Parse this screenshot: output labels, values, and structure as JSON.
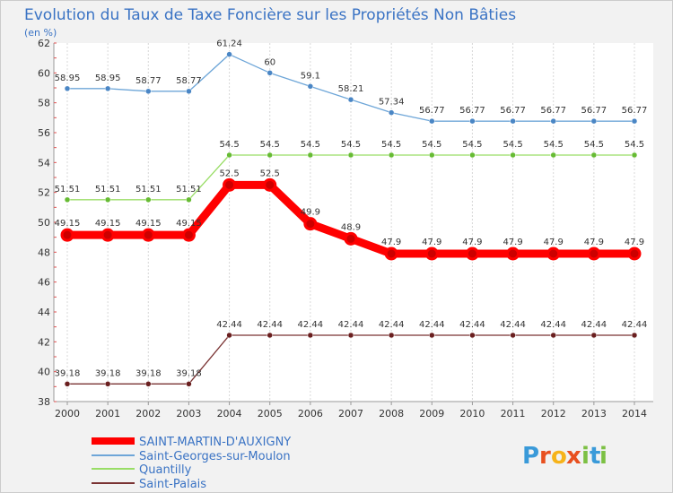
{
  "chart_data": {
    "type": "line",
    "title": "Evolution du Taux de Taxe Foncière sur les Propriétés Non Bâties",
    "ylabel": "(en %)",
    "xlabel": "",
    "x": [
      "2000",
      "2001",
      "2002",
      "2003",
      "2004",
      "2005",
      "2006",
      "2007",
      "2008",
      "2009",
      "2010",
      "2011",
      "2012",
      "2013",
      "2014"
    ],
    "ylim": [
      38,
      62
    ],
    "yticks": [
      38,
      40,
      42,
      44,
      46,
      48,
      50,
      52,
      54,
      56,
      58,
      60,
      62
    ],
    "grid": "vertical",
    "legend": "bottom-left",
    "series": [
      {
        "name": "SAINT-MARTIN-D'AUXIGNY",
        "color": "#ff0000",
        "marker": "#cc0000",
        "emphasis": true,
        "values": [
          49.15,
          49.15,
          49.15,
          49.15,
          52.5,
          52.5,
          49.9,
          48.9,
          47.9,
          47.9,
          47.9,
          47.9,
          47.9,
          47.9,
          47.9
        ],
        "labels": [
          "49.15",
          "49.15",
          "49.15",
          "49.15",
          "52.5",
          "52.5",
          "49.9",
          "48.9",
          "47.9",
          "47.9",
          "47.9",
          "47.9",
          "47.9",
          "47.9",
          "47.9"
        ]
      },
      {
        "name": "Saint-Georges-sur-Moulon",
        "color": "#6ea6d8",
        "marker": "#4a86c5",
        "emphasis": false,
        "values": [
          58.95,
          58.95,
          58.77,
          58.77,
          61.24,
          60,
          59.1,
          58.21,
          57.34,
          56.77,
          56.77,
          56.77,
          56.77,
          56.77,
          56.77
        ],
        "labels": [
          "58.95",
          "58.95",
          "58.77",
          "58.77",
          "61.24",
          "60",
          "59.1",
          "58.21",
          "57.34",
          "56.77",
          "56.77",
          "56.77",
          "56.77",
          "56.77",
          "56.77"
        ]
      },
      {
        "name": "Quantilly",
        "color": "#99dd66",
        "marker": "#66bb33",
        "emphasis": false,
        "values": [
          51.51,
          51.51,
          51.51,
          51.51,
          54.5,
          54.5,
          54.5,
          54.5,
          54.5,
          54.5,
          54.5,
          54.5,
          54.5,
          54.5,
          54.5
        ],
        "labels": [
          "51.51",
          "51.51",
          "51.51",
          "51.51",
          "54.5",
          "54.5",
          "54.5",
          "54.5",
          "54.5",
          "54.5",
          "54.5",
          "54.5",
          "54.5",
          "54.5",
          "54.5"
        ]
      },
      {
        "name": "Saint-Palais",
        "color": "#7a3333",
        "marker": "#6a1f1f",
        "emphasis": false,
        "values": [
          39.18,
          39.18,
          39.18,
          39.18,
          42.44,
          42.44,
          42.44,
          42.44,
          42.44,
          42.44,
          42.44,
          42.44,
          42.44,
          42.44,
          42.44
        ],
        "labels": [
          "39.18",
          "39.18",
          "39.18",
          "39.18",
          "42.44",
          "42.44",
          "42.44",
          "42.44",
          "42.44",
          "42.44",
          "42.44",
          "42.44",
          "42.44",
          "42.44",
          "42.44"
        ]
      }
    ]
  },
  "logo": {
    "letters": [
      "P",
      "r",
      "o",
      "x",
      "i",
      "t",
      "i"
    ],
    "colors": [
      "#3a9ad9",
      "#e8501f",
      "#f6b31a",
      "#e8501f",
      "#7cc043",
      "#3a9ad9",
      "#7cc043"
    ]
  }
}
